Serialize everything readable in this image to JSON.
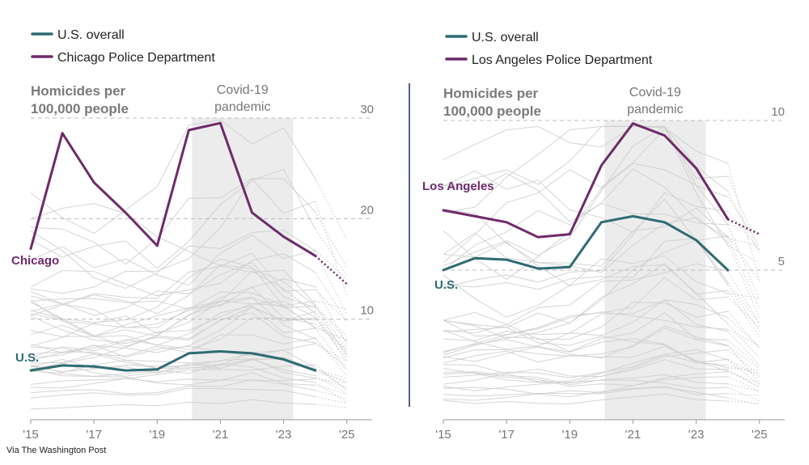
{
  "credit": "Via The Washington Post",
  "colors": {
    "us": "#2e6b72",
    "chicago": "#6e2a6b",
    "la": "#6e2a6b",
    "background_lines": "#cfcfcf",
    "covid_band": "#ececec",
    "divider": "#1f2a6b"
  },
  "chart_data": [
    {
      "type": "line",
      "legend": [
        {
          "name": "U.S. overall",
          "color": "#2e6b72"
        },
        {
          "name": "Chicago Police Department",
          "color": "#6e2a6b"
        }
      ],
      "axis_title": [
        "Homicides per",
        "100,000 people"
      ],
      "covid_label": [
        "Covid-19",
        "pandemic"
      ],
      "covid_range": [
        2020.1,
        2023.3
      ],
      "xlim": [
        2015,
        2025.8
      ],
      "ylim": [
        0,
        30
      ],
      "y_ticks": [
        10,
        20,
        30
      ],
      "x_ticks": [
        2015,
        2017,
        2019,
        2021,
        2023,
        2025
      ],
      "x_tick_labels": [
        "'15",
        "'17",
        "'19",
        "'21",
        "'23",
        "'25"
      ],
      "series": [
        {
          "name": "Chicago",
          "label": "Chicago",
          "x": [
            2015,
            2016,
            2017,
            2018,
            2019,
            2020,
            2021,
            2022,
            2023,
            2024
          ],
          "values": [
            17,
            28.5,
            23.6,
            20.6,
            17.3,
            28.8,
            29.5,
            20.6,
            18.2,
            16.3
          ],
          "projection": {
            "x": [
              2024,
              2025
            ],
            "values": [
              16.3,
              13.5
            ]
          }
        },
        {
          "name": "U.S.",
          "label": "U.S.",
          "x": [
            2015,
            2016,
            2017,
            2018,
            2019,
            2020,
            2021,
            2022,
            2023,
            2024
          ],
          "values": [
            4.9,
            5.4,
            5.3,
            4.9,
            5.0,
            6.6,
            6.8,
            6.6,
            6.0,
            4.9
          ]
        }
      ]
    },
    {
      "type": "line",
      "legend": [
        {
          "name": "U.S. overall",
          "color": "#2e6b72"
        },
        {
          "name": "Los Angeles Police Department",
          "color": "#6e2a6b"
        }
      ],
      "axis_title": [
        "Homicides per",
        "100,000 people"
      ],
      "covid_label": [
        "Covid-19",
        "pandemic"
      ],
      "covid_range": [
        2020.1,
        2023.3
      ],
      "xlim": [
        2015,
        2025.8
      ],
      "ylim": [
        0,
        10
      ],
      "y_ticks": [
        5,
        10
      ],
      "x_ticks": [
        2015,
        2017,
        2019,
        2021,
        2023,
        2025
      ],
      "x_tick_labels": [
        "'15",
        "'17",
        "'19",
        "'21",
        "'23",
        "'25"
      ],
      "series": [
        {
          "name": "Los Angeles",
          "label": "Los Angeles",
          "x": [
            2015,
            2016,
            2017,
            2018,
            2019,
            2020,
            2021,
            2022,
            2023,
            2024
          ],
          "values": [
            7.0,
            6.8,
            6.6,
            6.1,
            6.2,
            8.5,
            9.9,
            9.5,
            8.4,
            6.7
          ],
          "projection": {
            "x": [
              2024,
              2025
            ],
            "values": [
              6.7,
              6.2
            ]
          }
        },
        {
          "name": "U.S.",
          "label": "U.S.",
          "x": [
            2015,
            2016,
            2017,
            2018,
            2019,
            2020,
            2021,
            2022,
            2023,
            2024
          ],
          "values": [
            5.0,
            5.4,
            5.35,
            5.05,
            5.1,
            6.6,
            6.8,
            6.6,
            6.0,
            5.0
          ]
        }
      ]
    }
  ]
}
